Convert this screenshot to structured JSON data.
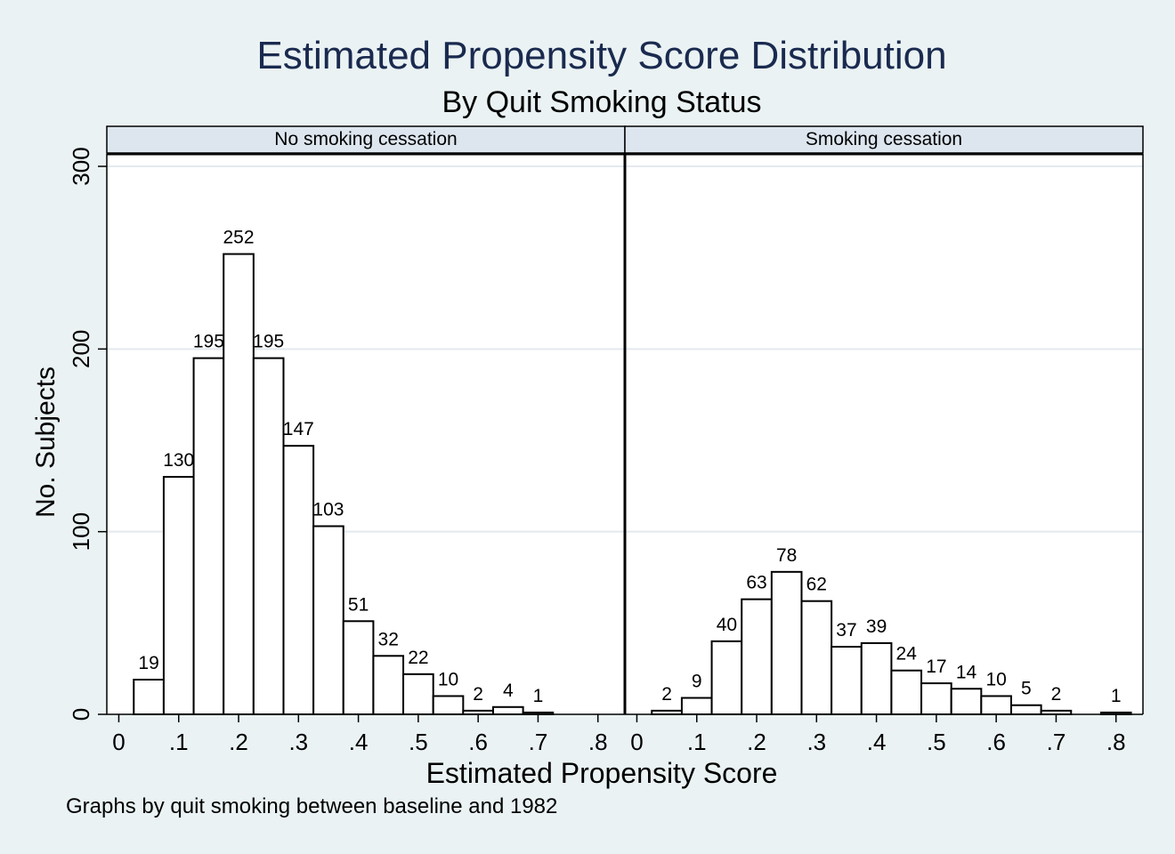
{
  "chart_data": {
    "type": "bar",
    "title": "Estimated Propensity Score Distribution",
    "subtitle": "By Quit Smoking Status",
    "xlabel": "Estimated Propensity Score",
    "ylabel": "No. Subjects",
    "note": "Graphs by quit smoking between baseline and 1982",
    "ylim": [
      0,
      300
    ],
    "yticks": [
      "0",
      "100",
      "200",
      "300"
    ],
    "xlim": [
      -0.02,
      0.845
    ],
    "xticks": [
      "0",
      ".1",
      ".2",
      ".3",
      ".4",
      ".5",
      ".6",
      ".7",
      ".8"
    ],
    "bin_width": 0.05,
    "grid": true,
    "colors": {
      "background": "#eaf2f3",
      "plot": "#ffffff",
      "strip": "#dde6ef",
      "title": "#1a2a4f",
      "bar_fill": "#ffffff",
      "bar_stroke": "#000000"
    },
    "panels": [
      {
        "label": "No smoking cessation",
        "bins": [
          {
            "x": 0.05,
            "value": 19,
            "label": "19"
          },
          {
            "x": 0.1,
            "value": 130,
            "label": "130"
          },
          {
            "x": 0.15,
            "value": 195,
            "label": "195"
          },
          {
            "x": 0.2,
            "value": 252,
            "label": "252"
          },
          {
            "x": 0.25,
            "value": 195,
            "label": "195"
          },
          {
            "x": 0.3,
            "value": 147,
            "label": "147"
          },
          {
            "x": 0.35,
            "value": 103,
            "label": "103"
          },
          {
            "x": 0.4,
            "value": 51,
            "label": "51"
          },
          {
            "x": 0.45,
            "value": 32,
            "label": "32"
          },
          {
            "x": 0.5,
            "value": 22,
            "label": "22"
          },
          {
            "x": 0.55,
            "value": 10,
            "label": "10"
          },
          {
            "x": 0.6,
            "value": 2,
            "label": "2"
          },
          {
            "x": 0.65,
            "value": 4,
            "label": "4"
          },
          {
            "x": 0.7,
            "value": 1,
            "label": "1"
          }
        ]
      },
      {
        "label": "Smoking cessation",
        "bins": [
          {
            "x": 0.05,
            "value": 2,
            "label": "2"
          },
          {
            "x": 0.1,
            "value": 9,
            "label": "9"
          },
          {
            "x": 0.15,
            "value": 40,
            "label": "40"
          },
          {
            "x": 0.2,
            "value": 63,
            "label": "63"
          },
          {
            "x": 0.25,
            "value": 78,
            "label": "78"
          },
          {
            "x": 0.3,
            "value": 62,
            "label": "62"
          },
          {
            "x": 0.35,
            "value": 37,
            "label": "37"
          },
          {
            "x": 0.4,
            "value": 39,
            "label": "39"
          },
          {
            "x": 0.45,
            "value": 24,
            "label": "24"
          },
          {
            "x": 0.5,
            "value": 17,
            "label": "17"
          },
          {
            "x": 0.55,
            "value": 14,
            "label": "14"
          },
          {
            "x": 0.6,
            "value": 10,
            "label": "10"
          },
          {
            "x": 0.65,
            "value": 5,
            "label": "5"
          },
          {
            "x": 0.7,
            "value": 2,
            "label": "2"
          },
          {
            "x": 0.8,
            "value": 1,
            "label": "1"
          }
        ]
      }
    ]
  }
}
